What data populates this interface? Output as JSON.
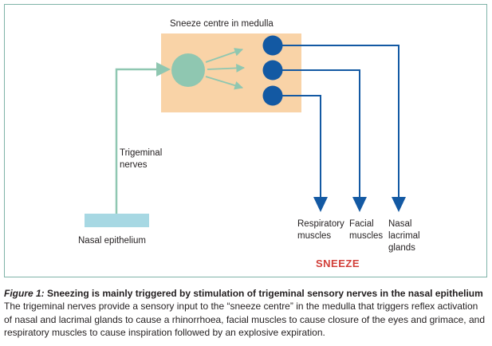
{
  "diagram": {
    "centre_label": "Sneeze centre in medulla",
    "nerve_label": "Trigeminal\nnerves",
    "epithelium_label": "Nasal epithelium",
    "targets": [
      {
        "label": "Respiratory\nmuscles"
      },
      {
        "label": "Facial\nmuscles"
      },
      {
        "label": "Nasal\nlacrimal\nglands"
      }
    ],
    "outcome": "SNEEZE",
    "colors": {
      "frame": "#7fb3a8",
      "centre_box": "#f9d3a7",
      "sensory": "#8fc7b1",
      "motor": "#1359a3",
      "epithelium": "#a7d8e3",
      "outcome": "#d2403a"
    }
  },
  "caption": {
    "figure_number": "Figure 1:",
    "title": " Sneezing is mainly triggered by stimulation of trigeminal sensory nerves in the nasal epithelium",
    "body": "The trigeminal nerves provide a sensory input to the “sneeze centre” in the medulla that triggers reflex activation of nasal and lacrimal glands to cause a rhinorrhoea, facial muscles to cause closure of the eyes and grimace, and respiratory muscles to cause inspiration followed by an explosive expiration."
  }
}
